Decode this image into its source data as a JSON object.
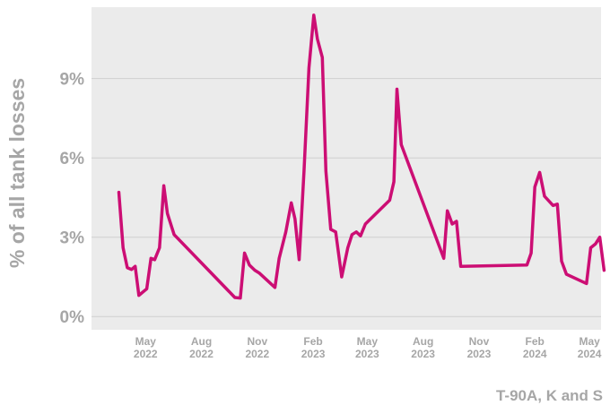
{
  "chart_data": {
    "type": "line",
    "ylabel": "% of all tank losses",
    "series_label": "T-90A, K and S",
    "ylim": [
      -0.5,
      11.7
    ],
    "yticks": [
      {
        "value": 0,
        "label": "0%"
      },
      {
        "value": 3,
        "label": "3%"
      },
      {
        "value": 6,
        "label": "6%"
      },
      {
        "value": 9,
        "label": "9%"
      }
    ],
    "xlim": [
      "2022-02-01",
      "2024-05-20"
    ],
    "xticks": [
      {
        "date": "2022-05-01",
        "month": "May",
        "year": "2022"
      },
      {
        "date": "2022-08-01",
        "month": "Aug",
        "year": "2022"
      },
      {
        "date": "2022-11-01",
        "month": "Nov",
        "year": "2022"
      },
      {
        "date": "2023-02-01",
        "month": "Feb",
        "year": "2023"
      },
      {
        "date": "2023-05-01",
        "month": "May",
        "year": "2023"
      },
      {
        "date": "2023-08-01",
        "month": "Aug",
        "year": "2023"
      },
      {
        "date": "2023-11-01",
        "month": "Nov",
        "year": "2023"
      },
      {
        "date": "2024-02-01",
        "month": "Feb",
        "year": "2024"
      },
      {
        "date": "2024-05-01",
        "month": "May",
        "year": "2024"
      }
    ],
    "grid": true,
    "line_color": "#cc0e74",
    "background_color": "#ebebeb",
    "series": [
      {
        "points": [
          [
            "2022-03-18",
            4.7
          ],
          [
            "2022-03-25",
            2.6
          ],
          [
            "2022-04-01",
            1.85
          ],
          [
            "2022-04-08",
            1.78
          ],
          [
            "2022-04-14",
            1.9
          ],
          [
            "2022-04-20",
            0.8
          ],
          [
            "2022-05-03",
            1.05
          ],
          [
            "2022-05-10",
            2.2
          ],
          [
            "2022-05-16",
            2.15
          ],
          [
            "2022-05-24",
            2.6
          ],
          [
            "2022-05-31",
            4.95
          ],
          [
            "2022-06-06",
            3.9
          ],
          [
            "2022-06-17",
            3.1
          ],
          [
            "2022-09-25",
            0.72
          ],
          [
            "2022-10-04",
            0.7
          ],
          [
            "2022-10-11",
            2.4
          ],
          [
            "2022-10-19",
            1.95
          ],
          [
            "2022-10-28",
            1.75
          ],
          [
            "2022-11-04",
            1.65
          ],
          [
            "2022-11-30",
            1.1
          ],
          [
            "2022-12-07",
            2.2
          ],
          [
            "2022-12-18",
            3.2
          ],
          [
            "2022-12-27",
            4.3
          ],
          [
            "2023-01-02",
            3.7
          ],
          [
            "2023-01-09",
            2.15
          ],
          [
            "2023-01-17",
            5.5
          ],
          [
            "2023-01-25",
            9.4
          ],
          [
            "2023-02-02",
            11.4
          ],
          [
            "2023-02-08",
            10.5
          ],
          [
            "2023-02-16",
            9.8
          ],
          [
            "2023-02-22",
            5.5
          ],
          [
            "2023-03-02",
            3.3
          ],
          [
            "2023-03-10",
            3.2
          ],
          [
            "2023-03-20",
            1.5
          ],
          [
            "2023-03-30",
            2.6
          ],
          [
            "2023-04-06",
            3.1
          ],
          [
            "2023-04-13",
            3.2
          ],
          [
            "2023-04-20",
            3.05
          ],
          [
            "2023-04-28",
            3.5
          ],
          [
            "2023-06-07",
            4.4
          ],
          [
            "2023-06-14",
            5.1
          ],
          [
            "2023-06-19",
            8.6
          ],
          [
            "2023-06-26",
            6.5
          ],
          [
            "2023-09-04",
            2.2
          ],
          [
            "2023-09-10",
            4.0
          ],
          [
            "2023-09-18",
            3.5
          ],
          [
            "2023-09-25",
            3.6
          ],
          [
            "2023-10-02",
            1.9
          ],
          [
            "2024-01-19",
            1.95
          ],
          [
            "2024-01-26",
            2.4
          ],
          [
            "2024-02-01",
            4.9
          ],
          [
            "2024-02-09",
            5.45
          ],
          [
            "2024-02-17",
            4.55
          ],
          [
            "2024-03-02",
            4.2
          ],
          [
            "2024-03-09",
            4.25
          ],
          [
            "2024-03-16",
            2.1
          ],
          [
            "2024-03-24",
            1.6
          ],
          [
            "2024-04-26",
            1.25
          ],
          [
            "2024-05-03",
            2.6
          ],
          [
            "2024-05-11",
            2.75
          ],
          [
            "2024-05-18",
            3.0
          ],
          [
            "2024-05-25",
            1.75
          ]
        ]
      }
    ]
  }
}
